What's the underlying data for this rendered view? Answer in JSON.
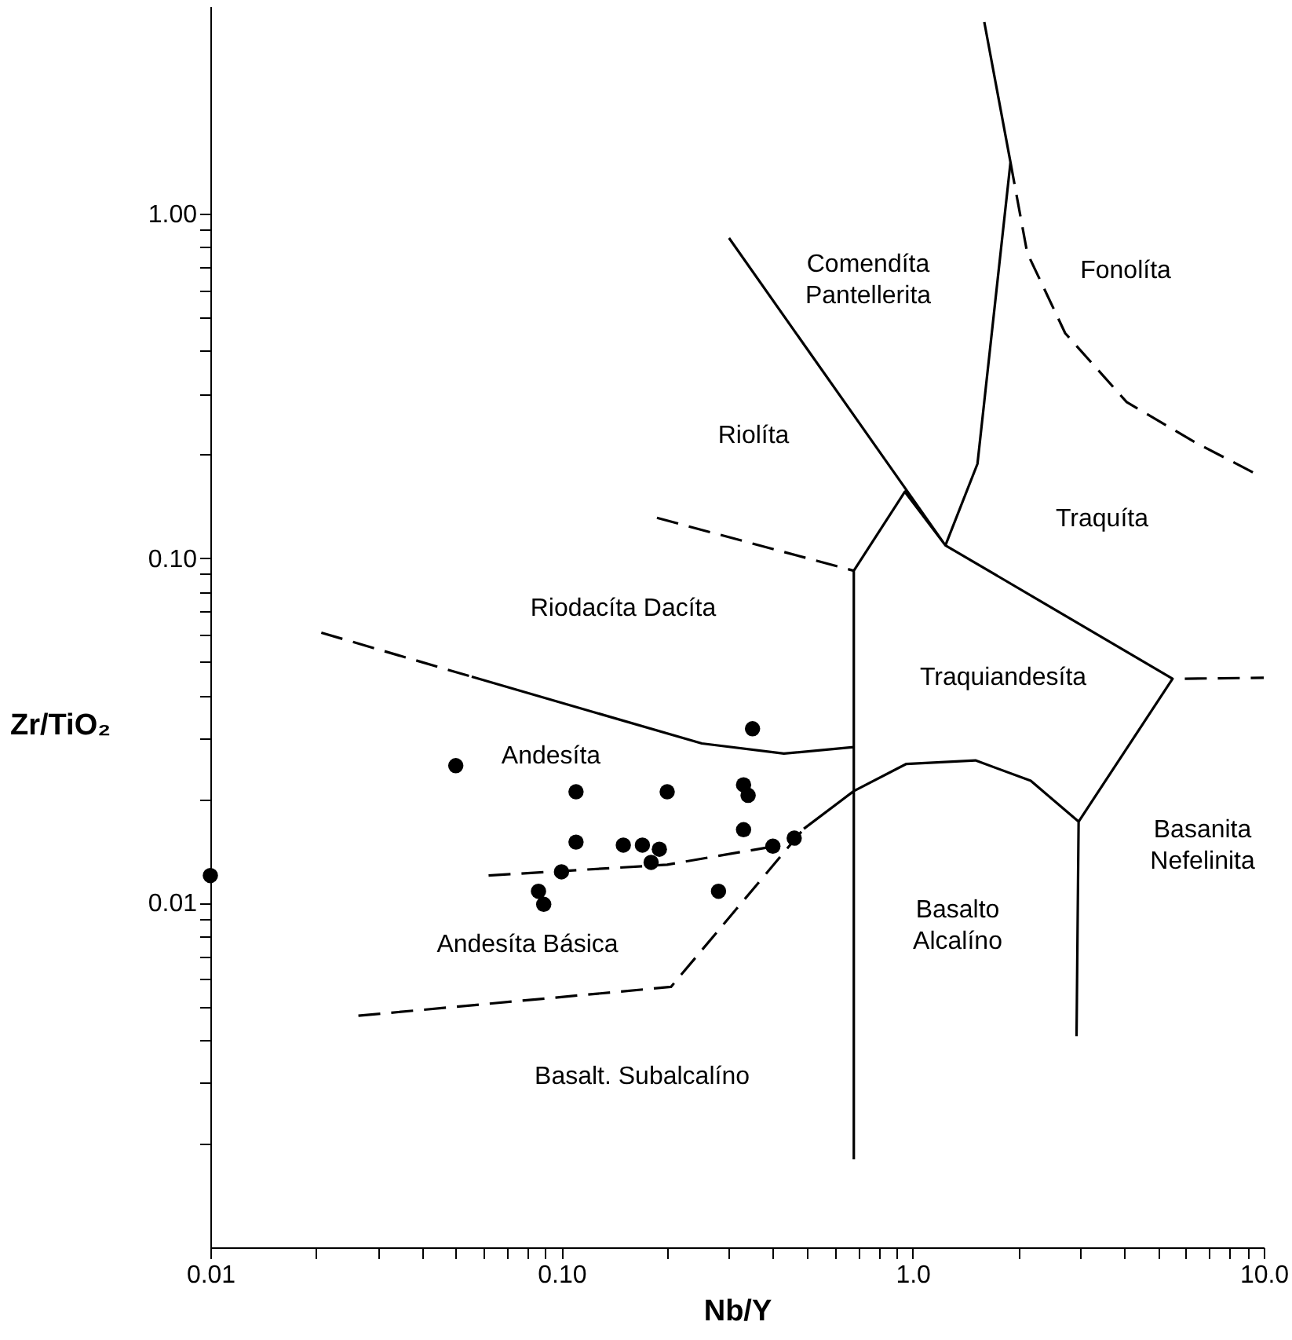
{
  "chart_data": {
    "type": "scatter",
    "xlabel": "Nb/Y",
    "ylabel": "Zr/TiO₂",
    "log": "xy",
    "grid": false,
    "xlim": [
      0.01,
      10
    ],
    "ylim": [
      0.001,
      4
    ],
    "xticks": [
      {
        "value": 0.01,
        "label": "0.01"
      },
      {
        "value": 0.02,
        "label": null
      },
      {
        "value": 0.03,
        "label": null
      },
      {
        "value": 0.04,
        "label": null
      },
      {
        "value": 0.05,
        "label": null
      },
      {
        "value": 0.06,
        "label": null
      },
      {
        "value": 0.07,
        "label": null
      },
      {
        "value": 0.08,
        "label": null
      },
      {
        "value": 0.09,
        "label": null
      },
      {
        "value": 0.1,
        "label": "0.10"
      },
      {
        "value": 0.2,
        "label": null
      },
      {
        "value": 0.3,
        "label": null
      },
      {
        "value": 0.4,
        "label": null
      },
      {
        "value": 0.5,
        "label": null
      },
      {
        "value": 0.6,
        "label": null
      },
      {
        "value": 0.7,
        "label": null
      },
      {
        "value": 0.8,
        "label": null
      },
      {
        "value": 0.9,
        "label": null
      },
      {
        "value": 1,
        "label": "1.0"
      },
      {
        "value": 2,
        "label": null
      },
      {
        "value": 3,
        "label": null
      },
      {
        "value": 4,
        "label": null
      },
      {
        "value": 5,
        "label": null
      },
      {
        "value": 6,
        "label": null
      },
      {
        "value": 7,
        "label": null
      },
      {
        "value": 8,
        "label": null
      },
      {
        "value": 9,
        "label": null
      },
      {
        "value": 10,
        "label": "10.0"
      }
    ],
    "yticks": [
      {
        "value": 0.002,
        "label": null
      },
      {
        "value": 0.003,
        "label": null
      },
      {
        "value": 0.004,
        "label": null
      },
      {
        "value": 0.005,
        "label": null
      },
      {
        "value": 0.006,
        "label": null
      },
      {
        "value": 0.007,
        "label": null
      },
      {
        "value": 0.008,
        "label": null
      },
      {
        "value": 0.009,
        "label": null
      },
      {
        "value": 0.01,
        "label": "0.01"
      },
      {
        "value": 0.02,
        "label": null
      },
      {
        "value": 0.03,
        "label": null
      },
      {
        "value": 0.04,
        "label": null
      },
      {
        "value": 0.05,
        "label": null
      },
      {
        "value": 0.06,
        "label": null
      },
      {
        "value": 0.07,
        "label": null
      },
      {
        "value": 0.08,
        "label": null
      },
      {
        "value": 0.09,
        "label": null
      },
      {
        "value": 0.1,
        "label": "0.10"
      },
      {
        "value": 0.2,
        "label": null
      },
      {
        "value": 0.3,
        "label": null
      },
      {
        "value": 0.4,
        "label": null
      },
      {
        "value": 0.5,
        "label": null
      },
      {
        "value": 0.6,
        "label": null
      },
      {
        "value": 0.7,
        "label": null
      },
      {
        "value": 0.8,
        "label": null
      },
      {
        "value": 0.9,
        "label": null
      },
      {
        "value": 1,
        "label": "1.00"
      }
    ],
    "series": [
      {
        "color": "#000000",
        "marker": "circle",
        "x": [
          0.01,
          0.05,
          0.11,
          0.2,
          0.35,
          0.33,
          0.34,
          0.11,
          0.15,
          0.17,
          0.19,
          0.18,
          0.33,
          0.4,
          0.46,
          0.1,
          0.086,
          0.089,
          0.28
        ],
        "values": [
          0.012,
          0.025,
          0.021,
          0.021,
          0.032,
          0.022,
          0.0205,
          0.015,
          0.0147,
          0.0147,
          0.0143,
          0.0131,
          0.0163,
          0.0146,
          0.0154,
          0.0123,
          0.0108,
          0.0099,
          0.0108
        ]
      },
      {
        "type": "line",
        "color": "#000000",
        "line_style": "solid",
        "x": [
          0.3,
          1.24,
          5.5,
          2.97,
          2.93,
          null,
          1.6,
          1.9,
          1.53,
          1.24,
          0.95,
          0.68,
          0.68,
          null,
          0.0555,
          0.251,
          0.43,
          0.68,
          null,
          0.49,
          0.68,
          0.96,
          1.51,
          2.17,
          2.97
        ],
        "values": [
          0.85,
          0.109,
          0.0447,
          0.0172,
          0.0041,
          null,
          3.6,
          1.41,
          0.188,
          0.109,
          0.156,
          0.092,
          0.0018,
          null,
          0.0453,
          0.029,
          0.0271,
          0.0283,
          null,
          0.0164,
          0.0211,
          0.0253,
          0.0259,
          0.0226,
          0.0172
        ]
      },
      {
        "type": "line",
        "color": "#000000",
        "line_style": "dashed",
        "x": [
          1.9,
          2.12,
          2.72,
          4.07,
          6.38,
          9.57,
          null,
          5.96,
          10,
          null,
          0.187,
          0.68,
          null,
          0.0207,
          0.0555,
          null,
          0.062,
          0.2,
          0.39,
          null,
          0.0264,
          0.205,
          0.49
        ],
        "values": [
          1.41,
          0.77,
          0.45,
          0.284,
          0.217,
          0.175,
          null,
          0.0447,
          0.045,
          null,
          0.131,
          0.092,
          null,
          0.0608,
          0.0453,
          null,
          0.012,
          0.0129,
          0.0145,
          null,
          0.0047,
          0.0057,
          0.0164
        ]
      }
    ],
    "annotations": [
      "Comendíta\nPantellerita",
      "Fonolíta",
      "Riolíta",
      "Traquíta",
      "Riodacíta  Dacíta",
      "Traquiandesíta",
      "Andesíta",
      "Basanita\nNefelinita",
      "Basalto\nAlcalíno",
      "Andesíta  Básica",
      "Basalt. Subalcalíno"
    ]
  }
}
